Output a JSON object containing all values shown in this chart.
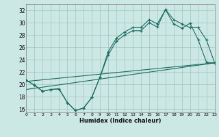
{
  "xlabel": "Humidex (Indice chaleur)",
  "xlim": [
    0,
    23
  ],
  "ylim": [
    15.5,
    33.0
  ],
  "yticks": [
    16,
    18,
    20,
    22,
    24,
    26,
    28,
    30,
    32
  ],
  "xticks": [
    0,
    1,
    2,
    3,
    4,
    5,
    6,
    7,
    8,
    9,
    10,
    11,
    12,
    13,
    14,
    15,
    16,
    17,
    18,
    19,
    20,
    21,
    22,
    23
  ],
  "bg_color": "#cce8e4",
  "grid_color": "#a8c8c4",
  "line_color": "#1a6b60",
  "curve1_x": [
    0,
    1,
    2,
    3,
    4,
    5,
    6,
    7,
    8,
    9,
    10,
    11,
    12,
    13,
    14,
    15,
    16,
    17,
    18,
    19,
    20,
    21,
    22,
    23
  ],
  "curve1_y": [
    20.7,
    19.9,
    18.9,
    19.2,
    19.3,
    17.1,
    15.8,
    16.2,
    17.9,
    21.2,
    24.8,
    27.0,
    28.0,
    28.7,
    28.7,
    30.0,
    29.3,
    32.1,
    29.8,
    29.1,
    29.9,
    27.2,
    23.6,
    23.5
  ],
  "curve2_x": [
    0,
    1,
    2,
    3,
    4,
    5,
    6,
    7,
    8,
    9,
    10,
    11,
    12,
    13,
    14,
    15,
    16,
    17,
    18,
    19,
    20,
    21,
    22,
    23
  ],
  "curve2_y": [
    20.7,
    19.9,
    18.9,
    19.2,
    19.3,
    17.1,
    15.8,
    16.2,
    17.9,
    21.2,
    25.3,
    27.5,
    28.5,
    29.2,
    29.2,
    30.5,
    29.8,
    32.1,
    30.5,
    29.8,
    29.2,
    29.2,
    27.2,
    23.5
  ],
  "trend1_x": [
    0,
    23
  ],
  "trend1_y": [
    20.5,
    23.5
  ],
  "trend2_x": [
    0,
    23
  ],
  "trend2_y": [
    19.2,
    23.5
  ]
}
